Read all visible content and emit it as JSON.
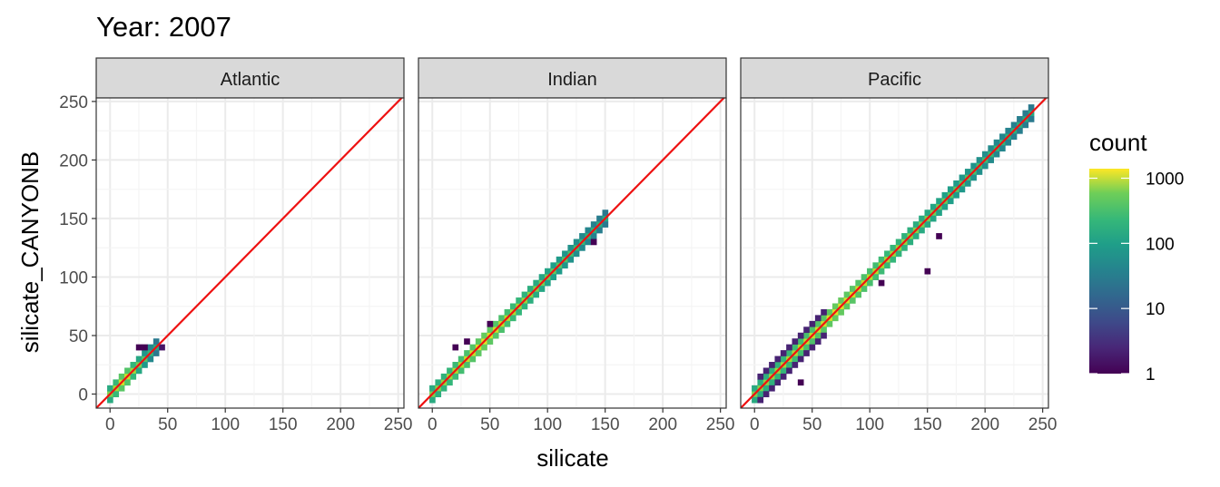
{
  "chart_data": {
    "type": "heatmap",
    "title": "Year: 2007",
    "xlabel": "silicate",
    "ylabel": "silicate_CANYONB",
    "xlim": [
      -12,
      255
    ],
    "ylim": [
      -12,
      253
    ],
    "x_ticks": [
      0,
      50,
      100,
      150,
      200,
      250
    ],
    "y_ticks": [
      0,
      50,
      100,
      150,
      200,
      250
    ],
    "bin_width": 5,
    "reference_line": {
      "slope": 1,
      "intercept": 0,
      "color": "#ee1111"
    },
    "facets": [
      {
        "label": "Atlantic",
        "ranges": [
          [
            0,
            40
          ],
          [
            0,
            0
          ]
        ],
        "tracks": [
          {
            "lo": 12,
            "hi": 42,
            "c1": 2,
            "c2": 4,
            "c3": 8
          },
          {
            "lo": 5,
            "hi": 22,
            "c1": 3,
            "c2": 6,
            "c3": 12
          }
        ],
        "outliers": [
          [
            28,
            42,
            1
          ],
          [
            24,
            38,
            1
          ]
        ]
      },
      {
        "label": "Indian",
        "ranges": [
          [
            0,
            150
          ],
          [
            0,
            0
          ]
        ],
        "tracks": [
          {
            "lo": 20,
            "hi": 70,
            "c1": 2,
            "c2": 4,
            "c3": 8
          },
          {
            "lo": 90,
            "hi": 145,
            "c1": 2,
            "c2": 4,
            "c3": 8
          }
        ],
        "outliers": [
          [
            22,
            42,
            1
          ],
          [
            30,
            45,
            1
          ],
          [
            48,
            60,
            1
          ],
          [
            140,
            130,
            1
          ]
        ]
      },
      {
        "label": "Pacific",
        "ranges": [
          [
            0,
            240
          ],
          [
            0,
            0
          ]
        ],
        "tracks": [
          {
            "lo": 10,
            "hi": 230,
            "c1": 2,
            "c2": 5,
            "c3": 10
          },
          {
            "lo": 5,
            "hi": 60,
            "c1": 4,
            "c2": 8,
            "c3": 14
          },
          {
            "lo": 100,
            "hi": 200,
            "c1": 3,
            "c2": 6,
            "c3": 12
          }
        ],
        "outliers": [
          [
            38,
            10,
            1
          ],
          [
            150,
            105,
            1
          ],
          [
            110,
            95,
            1
          ],
          [
            230,
            225,
            1
          ],
          [
            160,
            135,
            1
          ]
        ]
      }
    ],
    "legend": {
      "title": "count",
      "scale": "log10",
      "palette": "viridis",
      "labels": [
        "1000",
        "100",
        "10",
        "1"
      ],
      "values": [
        1000,
        100,
        10,
        1
      ]
    }
  }
}
